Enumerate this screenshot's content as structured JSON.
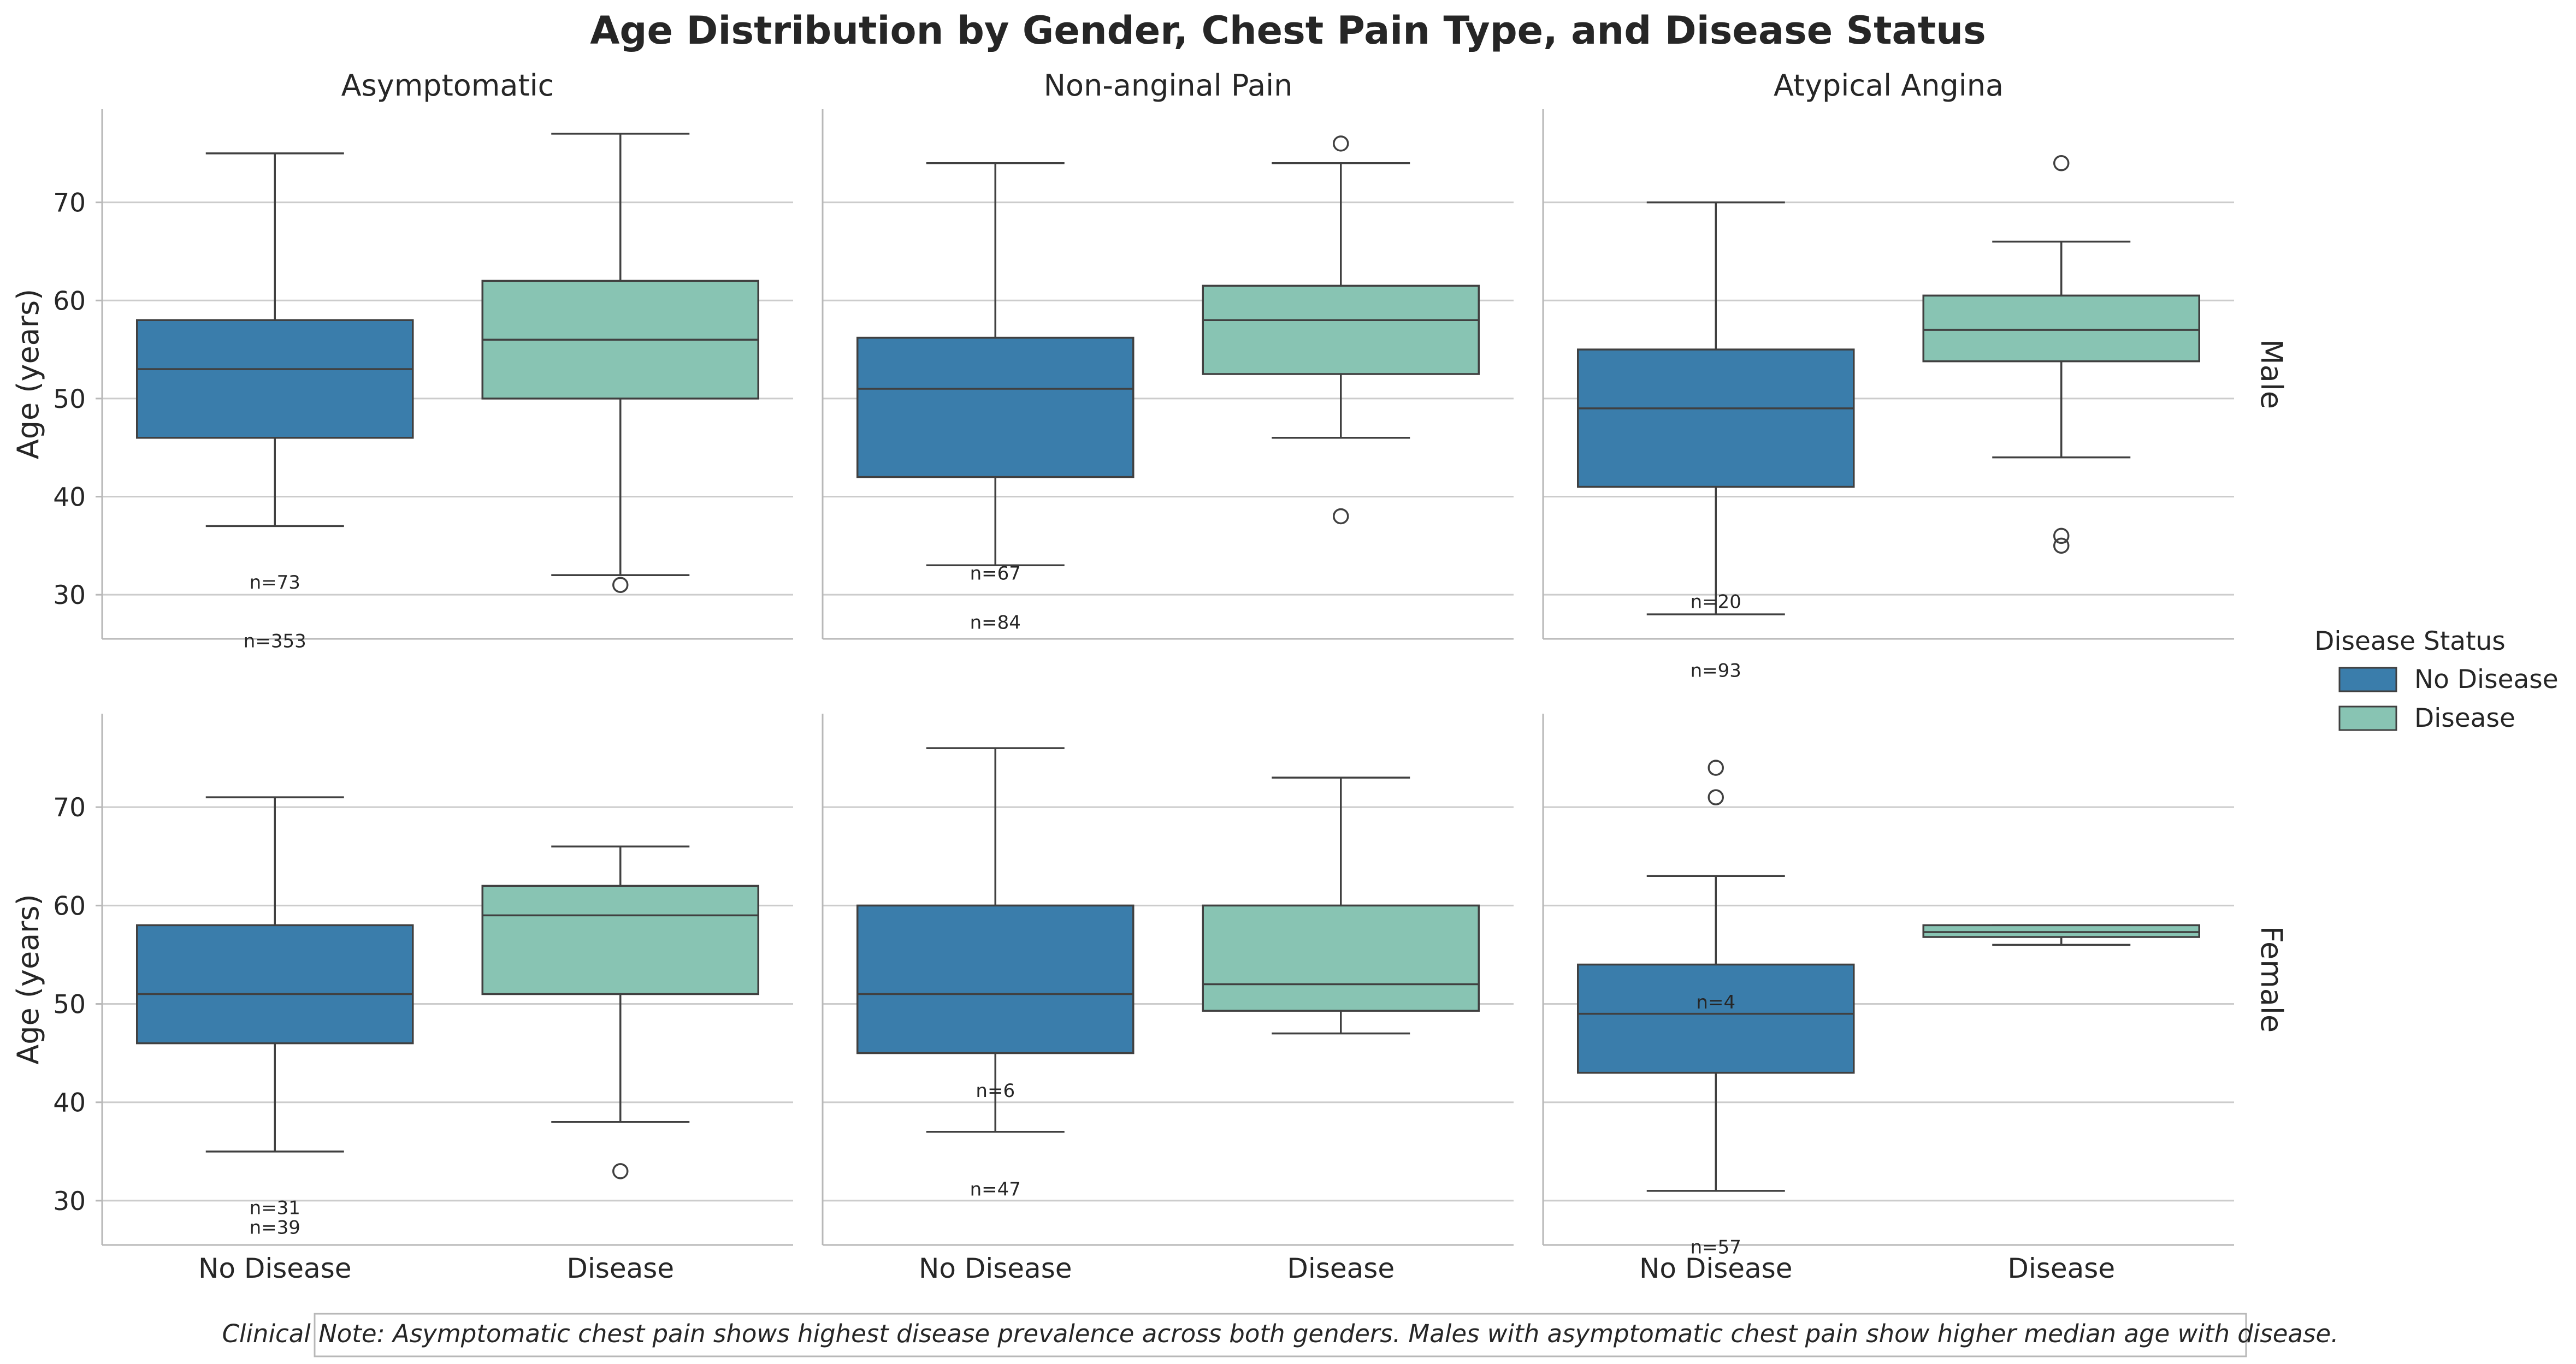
{
  "chart_data": {
    "type": "box",
    "title": "Age Distribution by Gender, Chest Pain Type, and Disease Status",
    "ylabel": "Age (years)",
    "ylim": [
      25.5,
      79.5
    ],
    "yticks": [
      30,
      40,
      50,
      60,
      70
    ],
    "grid": true,
    "columns": [
      "Asymptomatic",
      "Non-anginal Pain",
      "Atypical Angina"
    ],
    "rows": [
      "Male",
      "Female"
    ],
    "categories": [
      "No Disease",
      "Disease"
    ],
    "legend": {
      "title": "Disease Status",
      "placement": "right",
      "entries": [
        {
          "label": "No Disease",
          "color": "#3a7dab"
        },
        {
          "label": "Disease",
          "color": "#88c4b3"
        }
      ]
    },
    "colors": {
      "No Disease": "#3a7dab",
      "Disease": "#88c4b3",
      "line": "#404040",
      "grid": "#cccccc"
    },
    "panels": [
      {
        "row": "Male",
        "column": "Asymptomatic",
        "boxes": [
          {
            "category": "No Disease",
            "whisker_low": 37,
            "q1": 46,
            "median": 53,
            "q3": 58,
            "whisker_high": 75,
            "outliers": []
          },
          {
            "category": "Disease",
            "whisker_low": 32,
            "q1": 50,
            "median": 56,
            "q3": 62,
            "whisker_high": 77,
            "outliers": [
              31
            ]
          }
        ],
        "counts": [
          {
            "text": "n=73",
            "y": 31.3
          },
          {
            "text": "n=353",
            "y": 25.3
          }
        ]
      },
      {
        "row": "Male",
        "column": "Non-anginal Pain",
        "boxes": [
          {
            "category": "No Disease",
            "whisker_low": 33,
            "q1": 42,
            "median": 51,
            "q3": 56.2,
            "whisker_high": 74,
            "outliers": []
          },
          {
            "category": "Disease",
            "whisker_low": 46,
            "q1": 52.5,
            "median": 58,
            "q3": 61.5,
            "whisker_high": 74,
            "outliers": [
              38,
              76
            ]
          }
        ],
        "counts": [
          {
            "text": "n=67",
            "y": 32.2
          },
          {
            "text": "n=84",
            "y": 27.2
          }
        ]
      },
      {
        "row": "Male",
        "column": "Atypical Angina",
        "boxes": [
          {
            "category": "No Disease",
            "whisker_low": 28,
            "q1": 41,
            "median": 49,
            "q3": 55,
            "whisker_high": 70,
            "outliers": []
          },
          {
            "category": "Disease",
            "whisker_low": 44,
            "q1": 53.8,
            "median": 57,
            "q3": 60.5,
            "whisker_high": 66,
            "outliers": [
              35,
              36,
              74
            ]
          }
        ],
        "counts": [
          {
            "text": "n=20",
            "y": 29.3
          },
          {
            "text": "n=93",
            "y": 22.3
          }
        ]
      },
      {
        "row": "Female",
        "column": "Asymptomatic",
        "boxes": [
          {
            "category": "No Disease",
            "whisker_low": 35,
            "q1": 46,
            "median": 51,
            "q3": 58,
            "whisker_high": 71,
            "outliers": []
          },
          {
            "category": "Disease",
            "whisker_low": 38,
            "q1": 51,
            "median": 59,
            "q3": 62,
            "whisker_high": 66,
            "outliers": [
              33
            ]
          }
        ],
        "counts": [
          {
            "text": "n=31",
            "y": 29.3
          },
          {
            "text": "n=39",
            "y": 27.3
          }
        ]
      },
      {
        "row": "Female",
        "column": "Non-anginal Pain",
        "boxes": [
          {
            "category": "No Disease",
            "whisker_low": 37,
            "q1": 45,
            "median": 51,
            "q3": 60,
            "whisker_high": 76,
            "outliers": []
          },
          {
            "category": "Disease",
            "whisker_low": 47,
            "q1": 49.3,
            "median": 52,
            "q3": 60,
            "whisker_high": 73,
            "outliers": []
          }
        ],
        "counts": [
          {
            "text": "n=6",
            "y": 41.2
          },
          {
            "text": "n=47",
            "y": 31.2
          }
        ]
      },
      {
        "row": "Female",
        "column": "Atypical Angina",
        "boxes": [
          {
            "category": "No Disease",
            "whisker_low": 31,
            "q1": 43,
            "median": 49,
            "q3": 54,
            "whisker_high": 63,
            "outliers": [
              71,
              74
            ]
          },
          {
            "category": "Disease",
            "whisker_low": 56,
            "q1": 56.8,
            "median": 57.3,
            "q3": 58,
            "whisker_high": 58,
            "outliers": []
          }
        ],
        "counts": [
          {
            "text": "n=4",
            "y": 50.2
          },
          {
            "text": "n=57",
            "y": 25.3
          }
        ]
      }
    ],
    "annotation": "Clinical Note: Asymptomatic chest pain shows highest disease prevalence across both genders. Males with asymptomatic chest pain show higher median age with disease."
  }
}
